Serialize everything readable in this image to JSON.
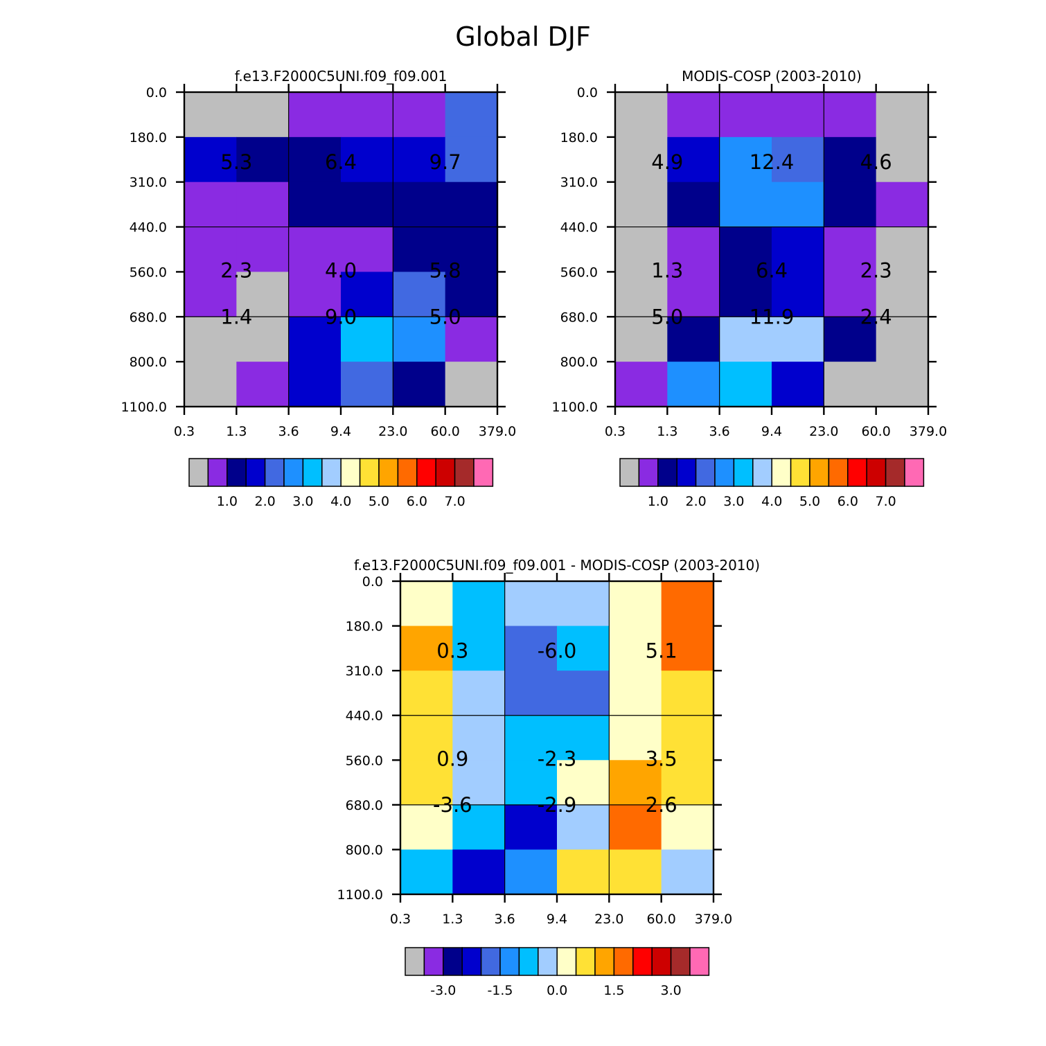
{
  "title": "Global DJF",
  "palette": [
    "#bebebe",
    "#8a2be2",
    "#00008b",
    "#0000cd",
    "#4169e1",
    "#1e90ff",
    "#00bfff",
    "#a2cdff",
    "#ffffc8",
    "#ffe135",
    "#ffa500",
    "#ff6a00",
    "#ff0000",
    "#cd0000",
    "#a52a2a",
    "#ff69b4"
  ],
  "chart_data": [
    {
      "type": "heatmap",
      "title": "f.e13.F2000C5UNI.f09_f09.001",
      "x_ticks": [
        "0.3",
        "1.3",
        "3.6",
        "9.4",
        "23.0",
        "60.0",
        "379.0"
      ],
      "y_ticks": [
        "0.0",
        "180.0",
        "310.0",
        "440.0",
        "560.0",
        "680.0",
        "800.0",
        "1100.0"
      ],
      "cell_color_index": [
        [
          0,
          0,
          1,
          1,
          1,
          4
        ],
        [
          3,
          2,
          2,
          3,
          3,
          4
        ],
        [
          1,
          1,
          2,
          2,
          2,
          2
        ],
        [
          1,
          1,
          1,
          1,
          2,
          2
        ],
        [
          1,
          0,
          1,
          3,
          4,
          2
        ],
        [
          0,
          0,
          3,
          6,
          5,
          1
        ],
        [
          0,
          1,
          3,
          4,
          2,
          0
        ]
      ],
      "box_values": [
        [
          "5.3",
          "6.4",
          "9.7"
        ],
        [
          "2.3",
          "4.0",
          "5.8"
        ],
        [
          "1.4",
          "9.0",
          "5.0"
        ]
      ],
      "colorbar_labels": [
        "1.0",
        "2.0",
        "3.0",
        "4.0",
        "5.0",
        "6.0",
        "7.0"
      ],
      "colorbar_label_boxes": [
        2,
        4,
        6,
        8,
        10,
        12,
        14
      ]
    },
    {
      "type": "heatmap",
      "title": "MODIS-COSP (2003-2010)",
      "x_ticks": [
        "0.3",
        "1.3",
        "3.6",
        "9.4",
        "23.0",
        "60.0",
        "379.0"
      ],
      "y_ticks": [
        "0.0",
        "180.0",
        "310.0",
        "440.0",
        "560.0",
        "680.0",
        "800.0",
        "1100.0"
      ],
      "cell_color_index": [
        [
          0,
          1,
          1,
          1,
          1,
          0
        ],
        [
          0,
          3,
          5,
          4,
          2,
          0
        ],
        [
          0,
          2,
          5,
          5,
          2,
          1
        ],
        [
          0,
          1,
          2,
          3,
          1,
          0
        ],
        [
          0,
          1,
          2,
          3,
          1,
          0
        ],
        [
          0,
          2,
          7,
          7,
          2,
          0
        ],
        [
          1,
          5,
          6,
          3,
          0,
          0
        ]
      ],
      "box_values": [
        [
          "4.9",
          "12.4",
          "4.6"
        ],
        [
          "1.3",
          "6.4",
          "2.3"
        ],
        [
          "5.0",
          "11.9",
          "2.4"
        ]
      ],
      "colorbar_labels": [
        "1.0",
        "2.0",
        "3.0",
        "4.0",
        "5.0",
        "6.0",
        "7.0"
      ],
      "colorbar_label_boxes": [
        2,
        4,
        6,
        8,
        10,
        12,
        14
      ]
    },
    {
      "type": "heatmap",
      "title": "f.e13.F2000C5UNI.f09_f09.001 - MODIS-COSP (2003-2010)",
      "x_ticks": [
        "0.3",
        "1.3",
        "3.6",
        "9.4",
        "23.0",
        "60.0",
        "379.0"
      ],
      "y_ticks": [
        "0.0",
        "180.0",
        "310.0",
        "440.0",
        "560.0",
        "680.0",
        "800.0",
        "1100.0"
      ],
      "cell_color_index": [
        [
          8,
          6,
          7,
          7,
          8,
          11
        ],
        [
          10,
          6,
          4,
          6,
          8,
          11
        ],
        [
          9,
          7,
          4,
          4,
          8,
          9
        ],
        [
          9,
          7,
          6,
          6,
          8,
          9
        ],
        [
          9,
          7,
          6,
          8,
          10,
          9
        ],
        [
          8,
          6,
          3,
          7,
          11,
          8
        ],
        [
          6,
          3,
          5,
          9,
          9,
          7
        ]
      ],
      "box_values": [
        [
          "0.3",
          "-6.0",
          "5.1"
        ],
        [
          "0.9",
          "-2.3",
          "3.5"
        ],
        [
          "-3.6",
          "-2.9",
          "2.6"
        ]
      ],
      "colorbar_labels": [
        "-3.0",
        "-1.5",
        "0.0",
        "1.5",
        "3.0"
      ],
      "colorbar_label_boxes": [
        2,
        5,
        8,
        11,
        14
      ]
    }
  ]
}
